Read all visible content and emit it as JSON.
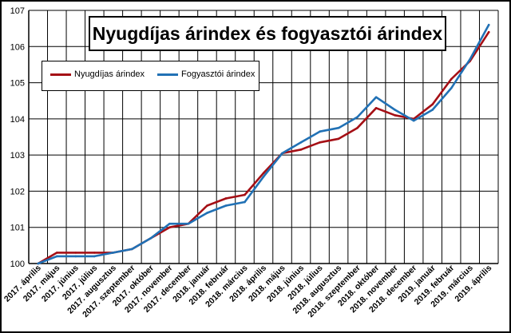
{
  "chart_data": {
    "type": "line",
    "title": "Nyugdíjas árindex és fogyasztói árindex",
    "xlabel": "",
    "ylabel": "",
    "ylim": [
      100,
      107
    ],
    "yticks": [
      100,
      101,
      102,
      103,
      104,
      105,
      106,
      107
    ],
    "grid": true,
    "legend_position": "top-left",
    "categories": [
      "2017. április",
      "2017. május",
      "2017. június",
      "2017. július",
      "2017. augusztus",
      "2017. szeptember",
      "2017. október",
      "2017. november",
      "2017. december",
      "2018. január",
      "2018. február",
      "2018. március",
      "2018. április",
      "2018. május",
      "2018. június",
      "2018. július",
      "2018. augusztus",
      "2018. szeptember",
      "2018. október",
      "2018. november",
      "2018. december",
      "2019. január",
      "2019. február",
      "2019. március",
      "2019. április"
    ],
    "series": [
      {
        "name": "Nyugdíjas árindex",
        "color": "#a50f15",
        "values": [
          100.0,
          100.3,
          100.3,
          100.3,
          100.3,
          100.4,
          100.7,
          101.0,
          101.1,
          101.6,
          101.8,
          101.9,
          102.5,
          103.05,
          103.15,
          103.35,
          103.45,
          103.75,
          104.3,
          104.1,
          104.0,
          104.4,
          105.1,
          105.6,
          106.4
        ]
      },
      {
        "name": "Fogyasztói árindex",
        "color": "#2171b5",
        "values": [
          100.0,
          100.2,
          100.2,
          100.2,
          100.3,
          100.4,
          100.7,
          101.1,
          101.1,
          101.4,
          101.6,
          101.7,
          102.4,
          103.05,
          103.35,
          103.65,
          103.75,
          104.05,
          104.6,
          104.25,
          103.95,
          104.25,
          104.85,
          105.65,
          106.6
        ]
      }
    ]
  }
}
